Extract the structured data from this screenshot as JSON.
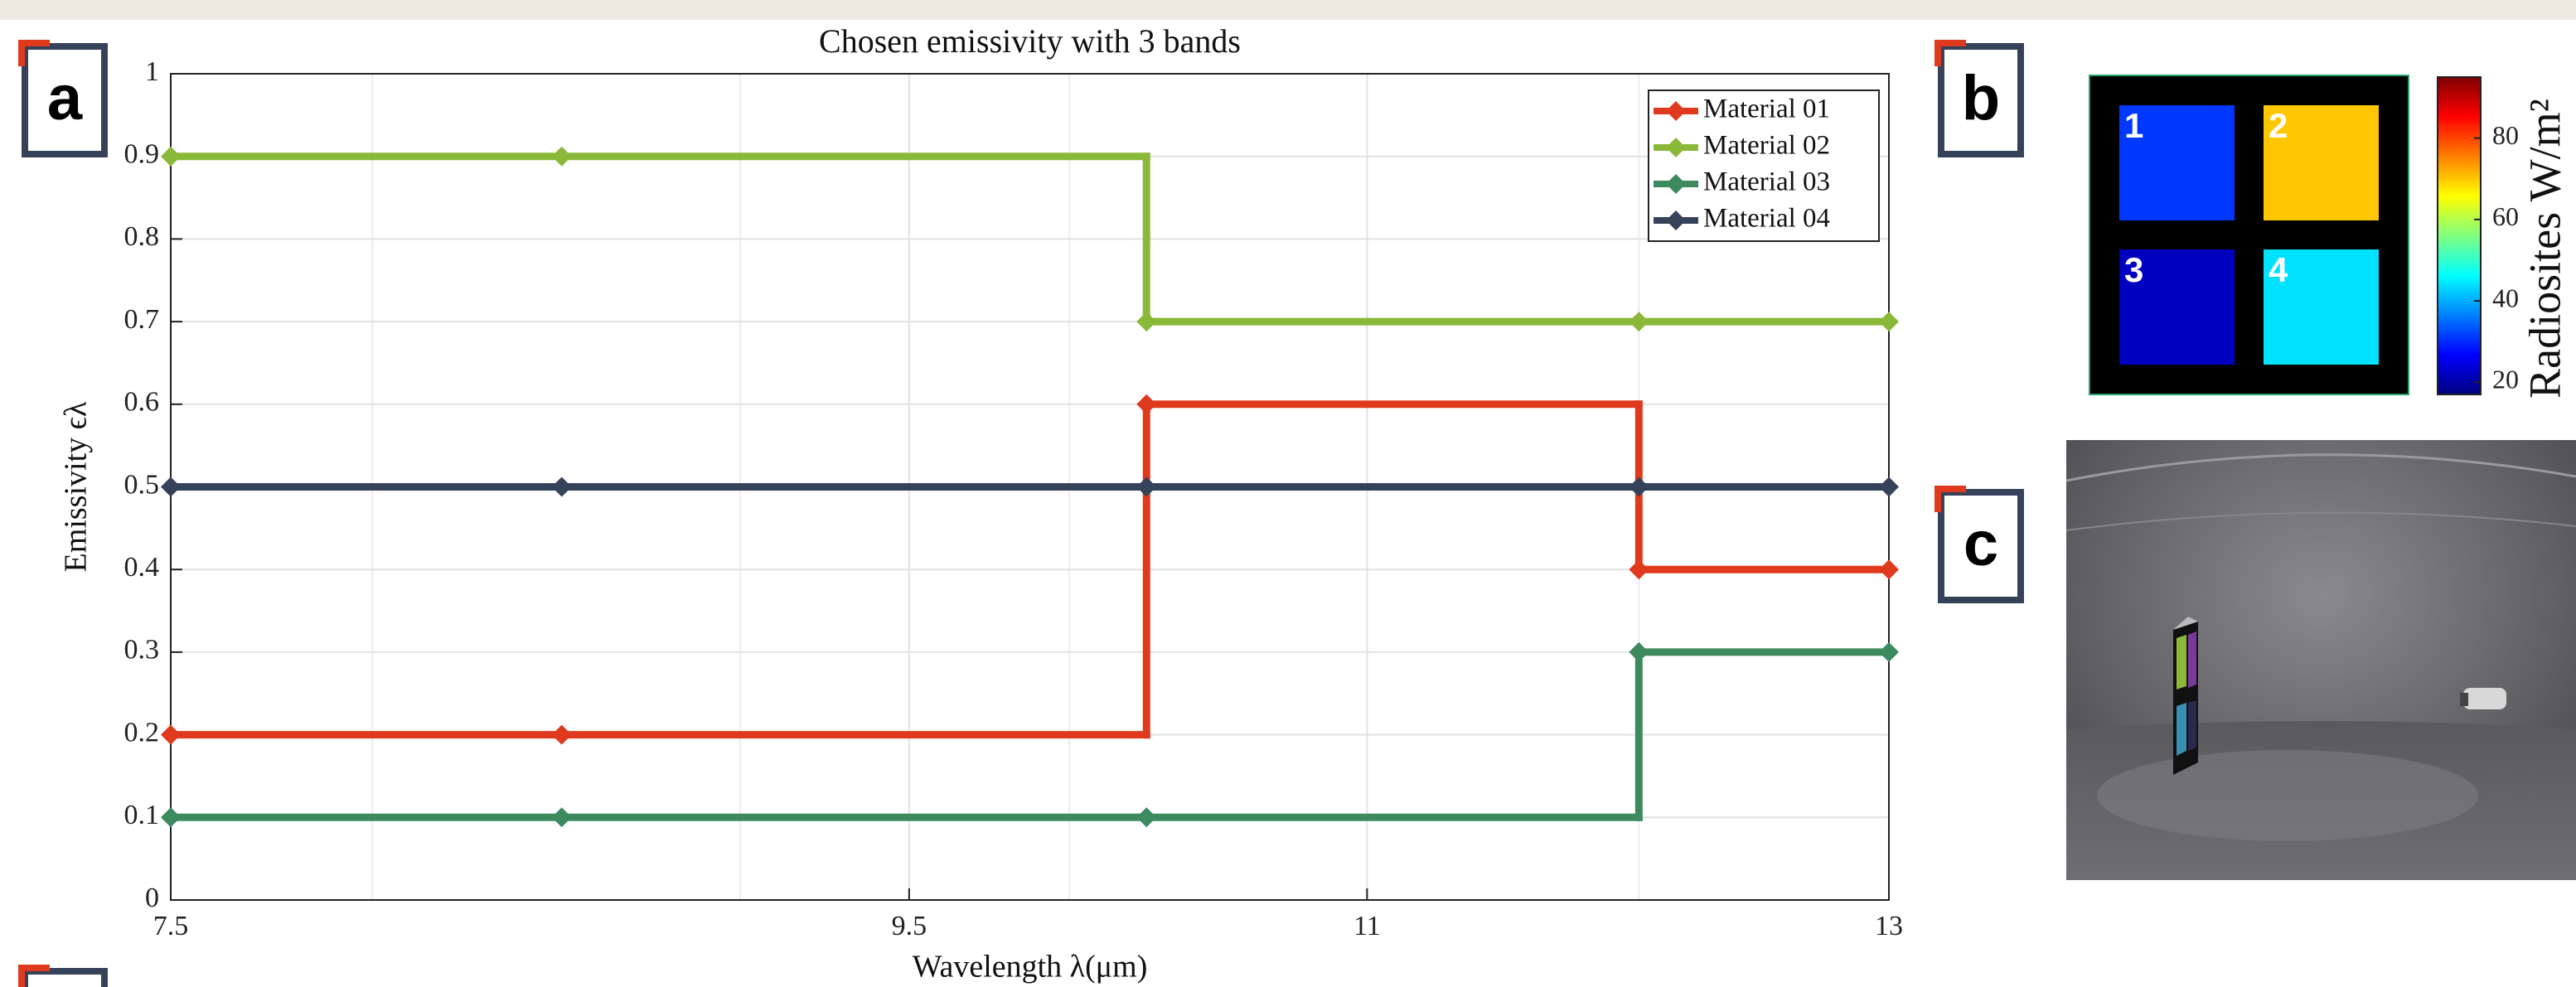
{
  "panel_labels": [
    "a",
    "b",
    "c"
  ],
  "chart_data": [
    {
      "type": "line",
      "step": "post",
      "marker": "diamond",
      "title": "Chosen emissivity with 3 bands",
      "xlabel": "Wavelength λ(μm)",
      "ylabel": "Emissivity ϵλ",
      "x": [
        7.5,
        8.5,
        10.25,
        12,
        13
      ],
      "xscale": "log",
      "xlim": [
        7.5,
        13
      ],
      "xticks": [
        7.5,
        9.5,
        11,
        13
      ],
      "xminorticks": [
        8,
        9,
        10,
        12
      ],
      "ylim": [
        0,
        1
      ],
      "yticks": [
        0,
        0.1,
        0.2,
        0.3,
        0.4,
        0.5,
        0.6,
        0.7,
        0.8,
        0.9,
        1
      ],
      "grid": true,
      "legend": "upper right",
      "series": [
        {
          "name": "Material 01",
          "color": "#e03a1e",
          "values": [
            0.2,
            0.2,
            0.6,
            0.4,
            0.4
          ]
        },
        {
          "name": "Material 02",
          "color": "#8ab93a",
          "values": [
            0.9,
            0.9,
            0.7,
            0.7,
            0.7
          ]
        },
        {
          "name": "Material 03",
          "color": "#3d8a5f",
          "values": [
            0.1,
            0.1,
            0.1,
            0.3,
            0.3
          ]
        },
        {
          "name": "Material 04",
          "color": "#36415a",
          "values": [
            0.5,
            0.5,
            0.5,
            0.5,
            0.5
          ]
        }
      ]
    },
    {
      "type": "heatmap",
      "colormap": "jet",
      "cells": [
        {
          "label": "1",
          "value": 31
        },
        {
          "label": "2",
          "value": 70
        },
        {
          "label": "3",
          "value": 22
        },
        {
          "label": "4",
          "value": 44
        }
      ],
      "clim": [
        17,
        95
      ],
      "cticks": [
        20,
        40,
        60,
        80
      ],
      "colorbar_label": "Radiosites W/m²"
    }
  ]
}
